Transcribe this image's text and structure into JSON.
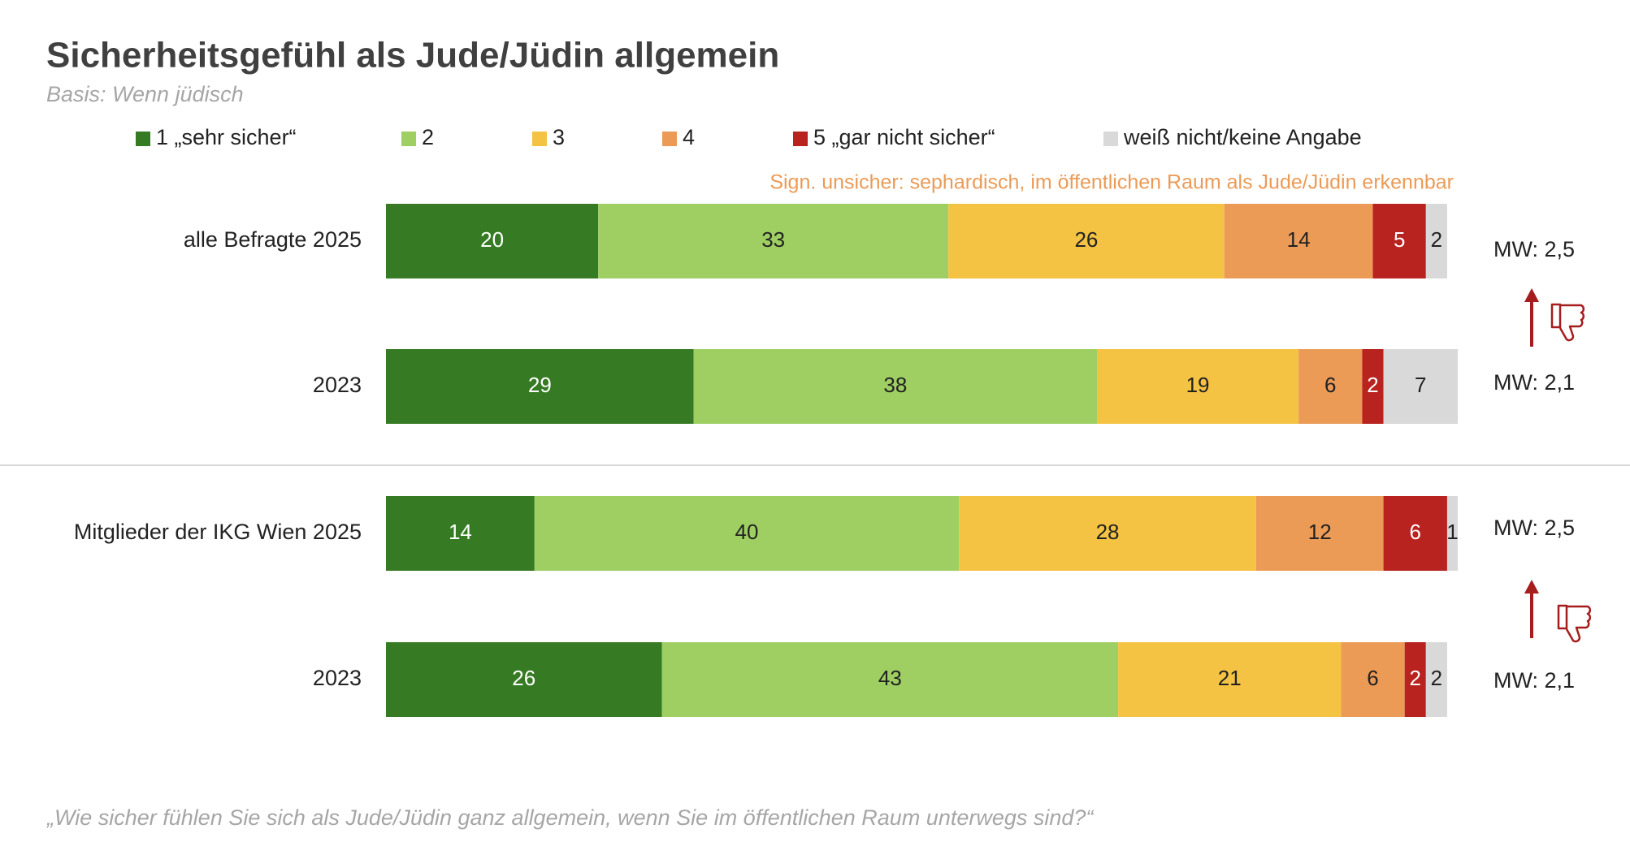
{
  "chart_data": {
    "type": "bar",
    "orientation": "horizontal",
    "stacked": true,
    "title": "Sicherheitsgefühl als Jude/Jüdin allgemein",
    "subtitle": "Basis: Wenn jüdisch",
    "annotation": "Sign. unsicher: sephardisch, im öffentlichen Raum als Jude/Jüdin erkennbar",
    "footnote": "„Wie sicher fühlen Sie sich als Jude/Jüdin ganz allgemein, wenn Sie im öffentlichen Raum unterwegs sind?“",
    "categories": [
      "alle Befragte 2025",
      "2023",
      "Mitglieder der IKG Wien 2025",
      "2023"
    ],
    "mean_labels": [
      "MW: 2,5",
      "MW: 2,1",
      "MW: 2,5",
      "MW: 2,1"
    ],
    "xlim": [
      0,
      101
    ],
    "series": [
      {
        "name": "1 „sehr sicher“",
        "color": "#367b23",
        "label_color": "#ffffff",
        "values": [
          20,
          29,
          14,
          26
        ]
      },
      {
        "name": "2",
        "color": "#9fcf63",
        "label_color": "#222222",
        "values": [
          33,
          38,
          40,
          43
        ]
      },
      {
        "name": "3",
        "color": "#f4c343",
        "label_color": "#222222",
        "values": [
          26,
          19,
          28,
          21
        ]
      },
      {
        "name": "4",
        "color": "#eb9b56",
        "label_color": "#222222",
        "values": [
          14,
          6,
          12,
          6
        ]
      },
      {
        "name": "5 „gar nicht sicher“",
        "color": "#b8221f",
        "label_color": "#ffffff",
        "values": [
          5,
          2,
          6,
          2
        ]
      },
      {
        "name": "weiß nicht/keine Angabe",
        "color": "#d9d9d9",
        "label_color": "#222222",
        "values": [
          2,
          7,
          1,
          2
        ]
      }
    ]
  }
}
